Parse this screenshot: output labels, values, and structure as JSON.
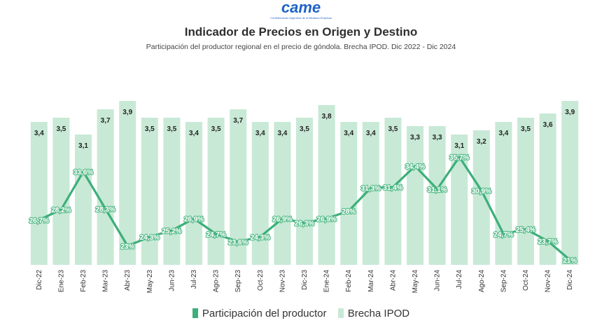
{
  "logo": {
    "wordmark": "came",
    "tagline": "Confederación Argentina de la Mediana Empresa"
  },
  "colors": {
    "line": "#3daf7a",
    "bar": "#c8e9d6",
    "label_bg": "#5bbd8c"
  },
  "chart_data": {
    "type": "bar",
    "title": "Indicador de Precios en Origen y Destino",
    "subtitle": "Participación del productor regional en el precio de góndola. Brecha IPOD. Dic 2022 - Dic 2024",
    "categories": [
      "Dic-22",
      "Ene-23",
      "Feb-23",
      "Mar-23",
      "Abr-23",
      "May-23",
      "Jun-23",
      "Jul-23",
      "Ago-23",
      "Sep-23",
      "Oct-23",
      "Nov-23",
      "Dic-23",
      "Ene-24",
      "Feb-24",
      "Mar-24",
      "Abr-24",
      "May-24",
      "Jun-24",
      "Jul-24",
      "Ago-24",
      "Sep-24",
      "Oct-24",
      "Nov-24",
      "Dic-24"
    ],
    "series": [
      {
        "name": "Brecha IPOD",
        "type": "bar",
        "values": [
          3.4,
          3.5,
          3.1,
          3.7,
          3.9,
          3.5,
          3.5,
          3.4,
          3.5,
          3.7,
          3.4,
          3.4,
          3.5,
          3.8,
          3.4,
          3.4,
          3.5,
          3.3,
          3.3,
          3.1,
          3.2,
          3.4,
          3.5,
          3.6,
          3.9
        ],
        "labels": [
          "3,4",
          "3,5",
          "3,1",
          "3,7",
          "3,9",
          "3,5",
          "3,5",
          "3,4",
          "3,5",
          "3,7",
          "3,4",
          "3,4",
          "3,5",
          "3,8",
          "3,4",
          "3,4",
          "3,5",
          "3,3",
          "3,3",
          "3,1",
          "3,2",
          "3,4",
          "3,5",
          "3,6",
          "3,9"
        ]
      },
      {
        "name": "Participación del productor",
        "type": "line",
        "values": [
          26.7,
          28.2,
          33.6,
          28.3,
          23,
          24.3,
          25.2,
          26.9,
          24.7,
          23.6,
          24.3,
          26.9,
          26.3,
          26.9,
          28,
          31.3,
          31.4,
          34.4,
          31.1,
          35.7,
          30.9,
          24.7,
          25.4,
          23.7,
          21
        ],
        "labels": [
          "26,7%",
          "28,2%",
          "33,6%",
          "28,3%",
          "23%",
          "24,3%",
          "25,2%",
          "26,9%",
          "24,7%",
          "23,6%",
          "24,3%",
          "26,9%",
          "26,3%",
          "26,9%",
          "28%",
          "31,3%",
          "31,4%",
          "34,4%",
          "31,1%",
          "35,7%",
          "30,9%",
          "24,7%",
          "25,4%",
          "23,7%",
          "21%"
        ]
      }
    ],
    "legend_position": "bottom",
    "grid": false
  }
}
